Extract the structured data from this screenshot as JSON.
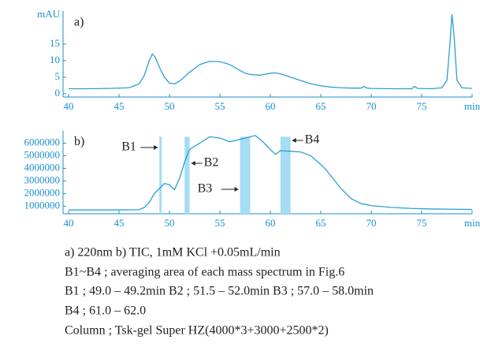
{
  "chart_data": [
    {
      "type": "line",
      "panel_label": "a)",
      "ylabel": "mAU",
      "color": "#2a9fd6",
      "x": [
        40,
        42,
        44,
        46,
        47,
        47.5,
        48,
        48.3,
        48.6,
        49,
        49.5,
        50,
        50.5,
        51,
        52,
        53,
        54,
        55,
        56,
        57,
        57.5,
        58,
        59,
        60,
        60.5,
        61,
        62,
        63,
        64,
        65,
        66,
        67,
        68,
        69,
        69.3,
        69.6,
        70,
        72,
        74,
        74.3,
        74.6,
        76,
        77,
        77.5,
        77.8,
        78,
        78.2,
        78.5,
        79,
        80
      ],
      "values": [
        1.5,
        1.5,
        1.6,
        1.8,
        3,
        5.5,
        10,
        12,
        11,
        8,
        5,
        3.2,
        3,
        3.8,
        6.5,
        8.8,
        9.8,
        9.7,
        8.8,
        7,
        6.2,
        5.8,
        5.6,
        6.2,
        6.3,
        6.0,
        5.0,
        4.0,
        3.0,
        2.4,
        2.0,
        1.8,
        1.7,
        1.7,
        2.2,
        1.7,
        1.6,
        1.5,
        1.5,
        2.2,
        1.6,
        1.5,
        1.8,
        4,
        15,
        24,
        18,
        4,
        1.8,
        1.6
      ],
      "xlim": [
        40,
        80
      ],
      "xticks": [
        40,
        45,
        50,
        55,
        60,
        65,
        70,
        75,
        {
          "value": 80,
          "label": "min"
        }
      ],
      "ylim": [
        -1,
        25
      ],
      "yticks": [
        0,
        5,
        10,
        15
      ]
    },
    {
      "type": "line",
      "panel_label": "b)",
      "color": "#2a9fd6",
      "band_color": "#a6dcf4",
      "x": [
        40,
        44,
        47,
        47.5,
        48,
        48.5,
        49,
        49.5,
        50,
        50.5,
        51,
        51.5,
        52,
        53,
        54,
        55,
        56,
        57,
        58,
        58.5,
        59,
        59.5,
        60,
        60.5,
        61,
        62,
        63,
        64,
        65,
        65.5,
        66,
        67,
        68,
        69,
        70,
        72,
        74,
        76,
        78,
        80
      ],
      "values": [
        700000,
        700000,
        720000,
        900000,
        1300000,
        2000000,
        2400000,
        2800000,
        2700000,
        2300000,
        3200000,
        4500000,
        5500000,
        6000000,
        6500000,
        6400000,
        6100000,
        6300000,
        6500000,
        6600000,
        6300000,
        5900000,
        5500000,
        5100000,
        5400000,
        5350000,
        5300000,
        5000000,
        4300000,
        3900000,
        3400000,
        2400000,
        1600000,
        1200000,
        1050000,
        900000,
        820000,
        780000,
        760000,
        740000
      ],
      "bands": [
        {
          "label": "B1",
          "range": [
            49.0,
            49.2
          ]
        },
        {
          "label": "B2",
          "range": [
            51.5,
            52.0
          ]
        },
        {
          "label": "B3",
          "range": [
            57.0,
            58.0
          ]
        },
        {
          "label": "B4",
          "range": [
            61.0,
            62.0
          ]
        }
      ],
      "xlim": [
        40,
        80
      ],
      "xticks": [
        40,
        45,
        50,
        55,
        60,
        65,
        70,
        75,
        {
          "value": 80,
          "label": "min"
        }
      ],
      "ylim": [
        400000,
        7000000
      ],
      "yticks": [
        1000000,
        2000000,
        3000000,
        4000000,
        5000000,
        6000000
      ]
    }
  ],
  "caption": [
    "a) 220nm  b) TIC, 1mM KCl +0.05mL/min",
    "B1~B4 ; averaging area of each mass spectrum in Fig.6",
    "B1 ; 49.0 – 49.2min   B2 ; 51.5 – 52.0min   B3 ; 57.0 – 58.0min",
    "B4 ; 61.0 – 62.0",
    "Column ; Tsk-gel Super HZ(4000*3+3000+2500*2)"
  ]
}
